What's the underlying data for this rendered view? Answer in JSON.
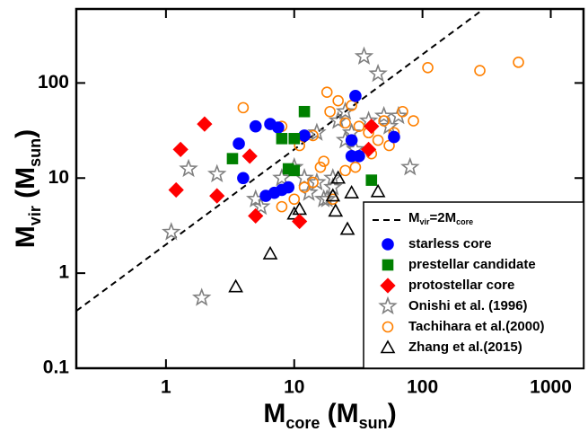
{
  "chart_data": {
    "type": "scatter",
    "xlabel": [
      "M",
      "core",
      " (M",
      "sun",
      ")"
    ],
    "ylabel": [
      "M",
      "vir",
      " (M",
      "sun",
      ")"
    ],
    "xlog": true,
    "ylog": true,
    "xlim": [
      0.2,
      1800
    ],
    "ylim": [
      0.1,
      600
    ],
    "xticks": [
      1,
      10,
      100,
      1000
    ],
    "yticks": [
      0.1,
      1,
      10,
      100
    ],
    "legend": "lower right",
    "ref_line": {
      "label": [
        "M",
        "vir",
        "=2M",
        "core"
      ],
      "factor": 2,
      "color": "#000000"
    },
    "series": [
      {
        "name": "starless core",
        "marker": "circle",
        "filled": true,
        "color": "#0000ff",
        "x": [
          3.7,
          5,
          6.5,
          7.5,
          4,
          7,
          8,
          9,
          12,
          28,
          30,
          28,
          32,
          60,
          6
        ],
        "y": [
          23,
          35,
          37,
          34,
          10,
          7,
          7.5,
          8,
          28,
          25,
          73,
          17,
          17,
          27,
          6.5
        ]
      },
      {
        "name": "prestellar candidate",
        "marker": "square",
        "filled": true,
        "color": "#008000",
        "x": [
          3.3,
          8,
          9,
          10,
          12,
          40,
          10
        ],
        "y": [
          16,
          26,
          12.5,
          12,
          50,
          9.5,
          26
        ]
      },
      {
        "name": "protostellar core",
        "marker": "diamond",
        "filled": true,
        "color": "#ff0000",
        "x": [
          1.3,
          2,
          1.2,
          2.5,
          4.5,
          5,
          11,
          38,
          40
        ],
        "y": [
          20,
          37,
          7.5,
          6.5,
          17,
          4,
          3.5,
          20,
          35
        ]
      },
      {
        "name": "Onishi et al. (1996)",
        "marker": "star",
        "filled": false,
        "color": "#808080",
        "x": [
          1.1,
          1.5,
          1.9,
          2.5,
          5,
          5.5,
          8,
          10,
          13,
          15,
          17,
          18,
          20,
          22,
          25,
          30,
          35,
          38,
          45,
          50,
          55,
          65,
          80,
          25,
          15,
          12,
          20,
          28
        ],
        "y": [
          2.7,
          12.5,
          0.55,
          11,
          6,
          5,
          10,
          13,
          7,
          9,
          6,
          6,
          8,
          40,
          25,
          20,
          190,
          40,
          125,
          45,
          35,
          45,
          13,
          50,
          30,
          10,
          10,
          30
        ]
      },
      {
        "name": "Tachihara et al.(2000)",
        "marker": "circle",
        "filled": false,
        "color": "#ff8000",
        "x": [
          4,
          8,
          11,
          14,
          16,
          18,
          19,
          22,
          25,
          28,
          32,
          38,
          45,
          50,
          60,
          70,
          85,
          110,
          280,
          560,
          12,
          14,
          17,
          20,
          30,
          40,
          55,
          8,
          10,
          25
        ],
        "y": [
          55,
          35,
          22,
          28,
          13,
          80,
          50,
          65,
          12,
          58,
          35,
          30,
          25,
          40,
          30,
          50,
          40,
          145,
          135,
          165,
          8,
          9,
          15,
          6,
          13,
          18,
          22,
          5,
          6,
          38
        ]
      },
      {
        "name": "Zhang et al.(2015)",
        "marker": "triangle",
        "filled": false,
        "color": "#000000",
        "x": [
          3.5,
          6.5,
          10,
          11,
          20,
          21,
          22,
          26,
          28,
          45
        ],
        "y": [
          0.72,
          1.6,
          4.2,
          4.7,
          6.5,
          4.5,
          10,
          2.9,
          7,
          7.2
        ]
      }
    ]
  }
}
